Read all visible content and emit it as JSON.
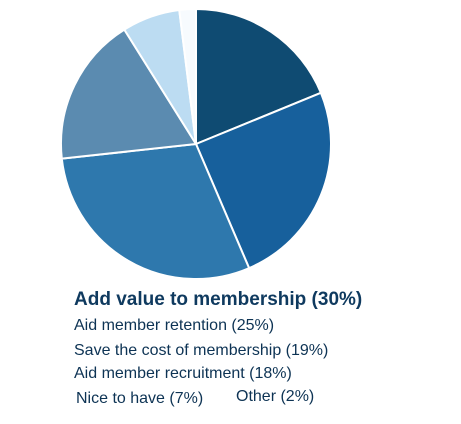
{
  "chart_data": {
    "type": "pie",
    "slices": [
      {
        "label": "Add value to membership",
        "value": 30,
        "color": "#2e78ad"
      },
      {
        "label": "Aid member retention",
        "value": 25,
        "color": "#17609c"
      },
      {
        "label": "Save the cost of membership",
        "value": 19,
        "color": "#0f4b72"
      },
      {
        "label": "Aid member recruitment",
        "value": 18,
        "color": "#5b8bb0"
      },
      {
        "label": "Nice to have",
        "value": 7,
        "color": "#bcdcf2"
      },
      {
        "label": "Other",
        "value": 2,
        "color": "#f7fbfe"
      }
    ],
    "legend": [
      "Add value to membership (30%)",
      "Aid member retention (25%)",
      "Save the cost of membership (19%)",
      "Aid member recruitment (18%)",
      "Nice to have (7%)",
      "Other (2%)"
    ]
  }
}
